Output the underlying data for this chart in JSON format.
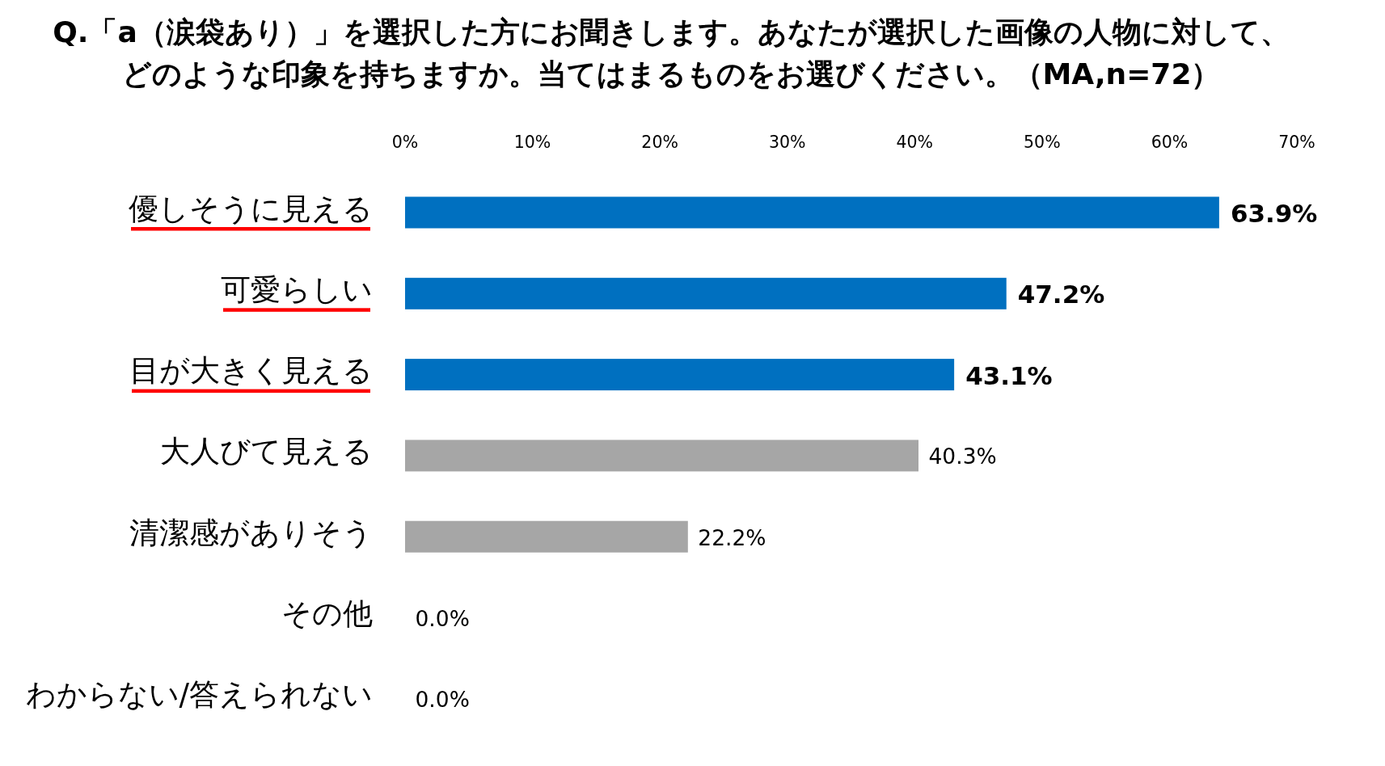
{
  "chart_data": {
    "type": "bar",
    "orientation": "horizontal",
    "title": "Q.「a（涙袋あり）」を選択した方にお聞きします。あなたが選択した画像の人物に対して、どのような印象を持ちますか。当てはまるものをお選びください。（MA,n=72）",
    "categories": [
      "優しそうに見える",
      "可愛らしい",
      "目が大きく見える",
      "大人びて見える",
      "清潔感がありそう",
      "その他",
      "わからない/答えられない"
    ],
    "values": [
      63.9,
      47.2,
      43.1,
      40.3,
      22.2,
      0,
      0
    ],
    "colors": [
      "#0070c0",
      "#0070c0",
      "#0070c0",
      "#a6a6a6",
      "#a6a6a6",
      "#a6a6a6",
      "#a6a6a6"
    ],
    "value_labels": [
      "63.9%",
      "47.2%",
      "43.1%",
      "40.3%",
      "22.2%",
      "0.0%",
      "0.0%"
    ],
    "xlim": [
      0,
      70
    ],
    "xticks": [
      {
        "value": 0,
        "label": "0%"
      },
      {
        "value": 10,
        "label": "10%"
      },
      {
        "value": 20,
        "label": "20%"
      },
      {
        "value": 30,
        "label": "30%"
      },
      {
        "value": 40,
        "label": "40%"
      },
      {
        "value": 50,
        "label": "50%"
      },
      {
        "value": 60,
        "label": "60%"
      },
      {
        "value": 70,
        "label": "70%"
      }
    ]
  }
}
